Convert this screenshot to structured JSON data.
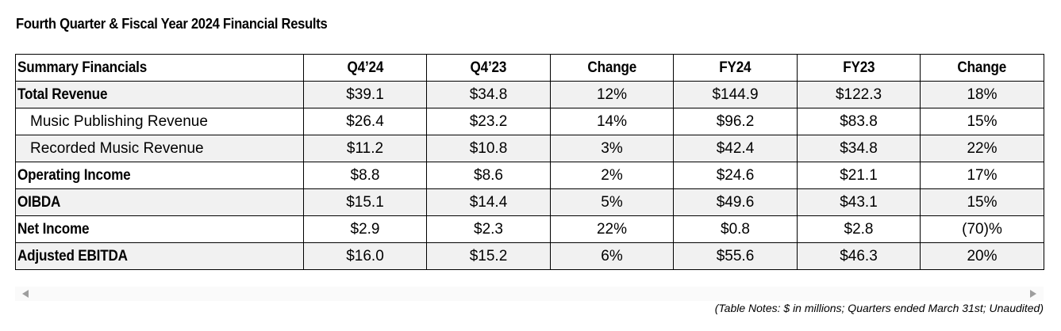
{
  "title": "Fourth Quarter & Fiscal Year 2024 Financial Results",
  "table": {
    "headers": [
      "Summary Financials",
      "Q4’24",
      "Q4’23",
      "Change",
      "FY24",
      "FY23",
      "Change"
    ],
    "rows": [
      {
        "label": "Total Revenue",
        "values": [
          "$39.1",
          "$34.8",
          "12%",
          "$144.9",
          "$122.3",
          "18%"
        ]
      },
      {
        "label": "Music Publishing Revenue",
        "values": [
          "$26.4",
          "$23.2",
          "14%",
          "$96.2",
          "$83.8",
          "15%"
        ]
      },
      {
        "label": "Recorded Music Revenue",
        "values": [
          "$11.2",
          "$10.8",
          "3%",
          "$42.4",
          "$34.8",
          "22%"
        ]
      },
      {
        "label": "Operating Income",
        "values": [
          "$8.8",
          "$8.6",
          "2%",
          "$24.6",
          "$21.1",
          "17%"
        ]
      },
      {
        "label": "OIBDA",
        "values": [
          "$15.1",
          "$14.4",
          "5%",
          "$49.6",
          "$43.1",
          "15%"
        ]
      },
      {
        "label": "Net Income",
        "values": [
          "$2.9",
          "$2.3",
          "22%",
          "$0.8",
          "$2.8",
          "(70)%"
        ]
      },
      {
        "label": "Adjusted EBITDA",
        "values": [
          "$16.0",
          "$15.2",
          "6%",
          "$55.6",
          "$46.3",
          "20%"
        ]
      }
    ]
  },
  "table_notes": "(Table Notes: $ in millions; Quarters ended March 31st; Unaudited)",
  "scrollbar": {
    "left_icon": "scroll-left-arrow",
    "right_icon": "scroll-right-arrow",
    "arrow_color": "#9e9e9e",
    "track_color": "#fafafa"
  },
  "colors": {
    "shaded_row": "#f1f1f1",
    "border": "#000000"
  }
}
